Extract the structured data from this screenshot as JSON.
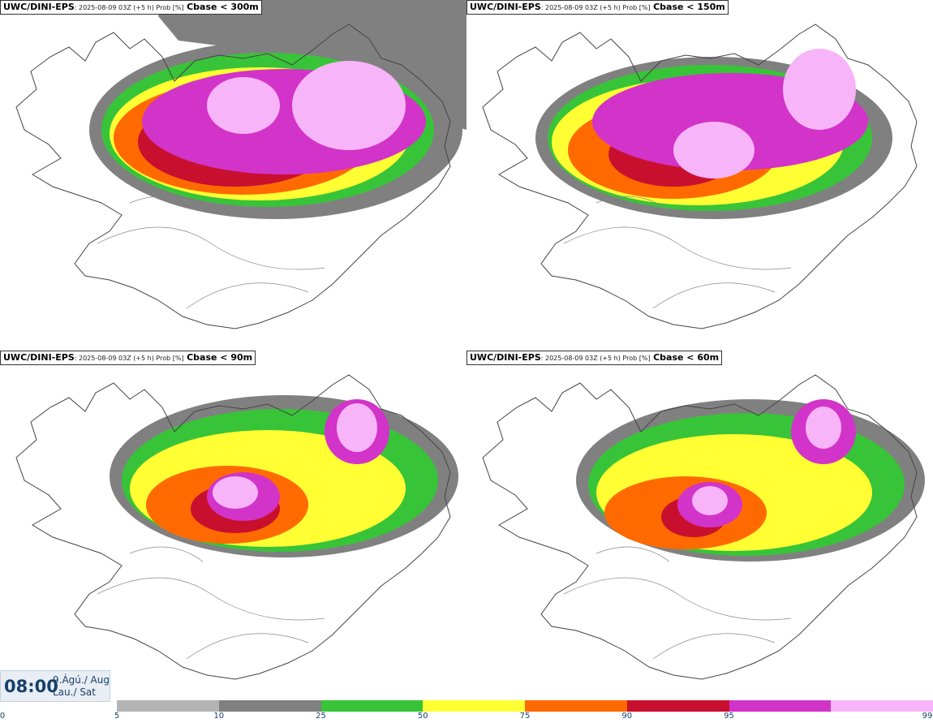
{
  "panels": [
    {
      "source": "UWC/DINI-EPS",
      "meta": ": 2025-08-09 03Z (+5 h) Prob [%]",
      "variable": "Cbase < 300m"
    },
    {
      "source": "UWC/DINI-EPS",
      "meta": ": 2025-08-09 03Z (+5 h) Prob [%]",
      "variable": "Cbase < 150m"
    },
    {
      "source": "UWC/DINI-EPS",
      "meta": ": 2025-08-09 03Z (+5 h) Prob [%]",
      "variable": "Cbase < 90m"
    },
    {
      "source": "UWC/DINI-EPS",
      "meta": ": 2025-08-09 03Z (+5 h) Prob [%]",
      "variable": "Cbase < 60m"
    }
  ],
  "valid_time": {
    "clock": "08:00",
    "date": "9.Ágú./ Aug",
    "weekday": "Lau./ Sat"
  },
  "legend": {
    "ticks": [
      "0",
      "5",
      "10",
      "25",
      "50",
      "75",
      "90",
      "95",
      "99"
    ],
    "bins": [
      {
        "from": "5",
        "to": "10",
        "color": "#b4b4b4"
      },
      {
        "from": "10",
        "to": "25",
        "color": "#808080"
      },
      {
        "from": "25",
        "to": "50",
        "color": "#38c438"
      },
      {
        "from": "50",
        "to": "75",
        "color": "#ffff33"
      },
      {
        "from": "75",
        "to": "90",
        "color": "#ff6a00"
      },
      {
        "from": "90",
        "to": "95",
        "color": "#c8102e"
      },
      {
        "from": "95",
        "to": "99",
        "color": "#d233c8"
      },
      {
        "from": "99",
        "to": "",
        "color": "#f8b4f8"
      }
    ]
  }
}
